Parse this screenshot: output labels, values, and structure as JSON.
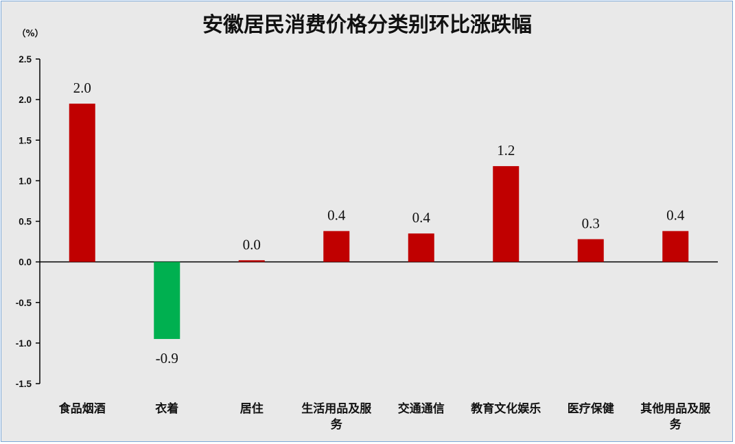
{
  "chart_data": {
    "type": "bar",
    "title": "安徽居民消费价格分类别环比涨跌幅",
    "unit_label": "（%）",
    "categories": [
      [
        "食品烟酒"
      ],
      [
        "衣着"
      ],
      [
        "居住"
      ],
      [
        "生活用品及服",
        "务"
      ],
      [
        "交通通信"
      ],
      [
        "教育文化娱乐"
      ],
      [
        "医疗保健"
      ],
      [
        "其他用品及服",
        "务"
      ]
    ],
    "values": [
      1.95,
      -0.95,
      0.02,
      0.38,
      0.35,
      1.18,
      0.28,
      0.38
    ],
    "data_labels": [
      "2.0",
      "-0.9",
      "0.0",
      "0.4",
      "0.4",
      "1.2",
      "0.3",
      "0.4"
    ],
    "yticks": [
      "2.5",
      "2.0",
      "1.5",
      "1.0",
      "0.5",
      "0.0",
      "-0.5",
      "-1.0",
      "-1.5"
    ],
    "ylim": [
      -1.5,
      2.5
    ],
    "grid": false,
    "legend": "none",
    "colors": {
      "positive": "#c00000",
      "negative": "#00b050",
      "background": "#e9e9e9",
      "border": "#7aa7d8"
    }
  }
}
